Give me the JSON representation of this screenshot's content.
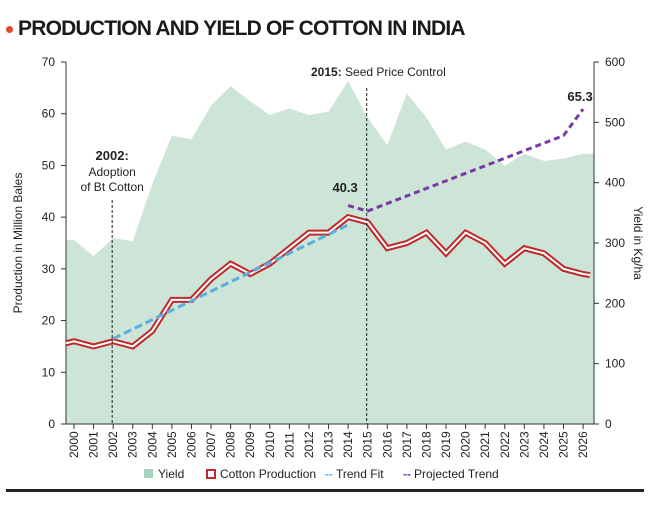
{
  "page": {
    "accent_color": "#e0492a"
  },
  "chart_data": {
    "type": "area+line",
    "title": "PRODUCTION AND YIELD OF COTTON IN INDIA",
    "categories": [
      "2000",
      "2001",
      "2002",
      "2003",
      "2004",
      "2005",
      "2006",
      "2007",
      "2008",
      "2009",
      "2010",
      "2011",
      "2012",
      "2013",
      "2014",
      "2015",
      "2016",
      "2017",
      "2018",
      "2019",
      "2020",
      "2021",
      "2022",
      "2023",
      "2024",
      "2025",
      "2026"
    ],
    "ylabel_left": "Production in Million Bales",
    "ylabel_right": "Yield in Kg/ha",
    "ylim_left": [
      0,
      70
    ],
    "ylim_right": [
      0,
      600
    ],
    "yticks_left": [
      "0",
      "10",
      "20",
      "30",
      "40",
      "50",
      "60",
      "70"
    ],
    "yticks_right": [
      "0",
      "100",
      "200",
      "300",
      "400",
      "500",
      "600"
    ],
    "grid": false,
    "legend_position": "bottom",
    "series": [
      {
        "name": "Yield",
        "kind": "area",
        "axis": "right",
        "color": "#cde5d6",
        "values": [
          305,
          278,
          308,
          303,
          398,
          478,
          472,
          528,
          560,
          535,
          512,
          523,
          512,
          518,
          568,
          508,
          462,
          548,
          508,
          455,
          468,
          455,
          428,
          448,
          436,
          440,
          448
        ]
      },
      {
        "name": "Cotton Production",
        "kind": "line",
        "axis": "left",
        "color": "#c0292b",
        "values": [
          16,
          15,
          16,
          15,
          18,
          24,
          24,
          28,
          31,
          29,
          31,
          34,
          37,
          37,
          40,
          39,
          34,
          35,
          37,
          33,
          37,
          35,
          31,
          34,
          33,
          30,
          29
        ]
      },
      {
        "name": "Trend Fit",
        "kind": "line",
        "axis": "left",
        "color": "#5aaee0",
        "x": [
          "2002",
          "2014"
        ],
        "values": [
          16.5,
          38.5
        ]
      },
      {
        "name": "Projected Trend",
        "kind": "line",
        "axis": "right",
        "color": "#7a3aa6",
        "x": [
          "2014",
          "2015",
          "2025",
          "2026"
        ],
        "values": [
          362,
          353,
          478,
          522
        ]
      }
    ],
    "annotations": [
      {
        "x": "2002",
        "bold": "2002:",
        "lines": [
          "Adoption",
          "of Bt Cotton"
        ]
      },
      {
        "x": "2015",
        "bold": "2015:",
        "text": "Seed Price Control"
      },
      {
        "x": "2014",
        "value_label": "40.3"
      },
      {
        "x": "2026",
        "value_label": "65.3"
      }
    ],
    "legend": [
      {
        "label": "Yield",
        "swatch": "square",
        "color": "#a8d2bb"
      },
      {
        "label": "Cotton Production",
        "swatch": "square-outline",
        "color": "#c0292b"
      },
      {
        "label": "Trend Fit",
        "swatch": "dash",
        "color": "#5aaee0",
        "marker": "--"
      },
      {
        "label": "Projected Trend",
        "swatch": "dash",
        "color": "#7a3aa6",
        "marker": "--"
      }
    ]
  }
}
